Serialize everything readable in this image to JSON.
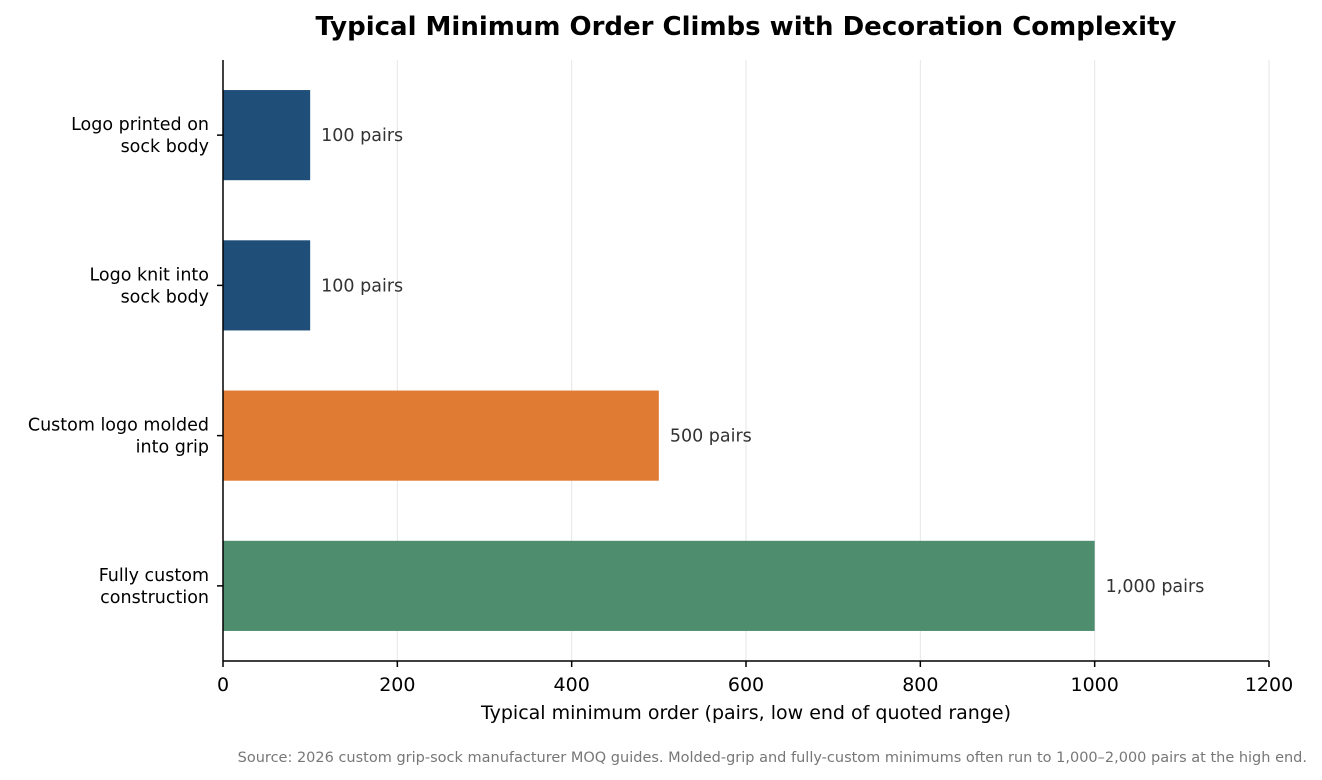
{
  "chart_data": {
    "type": "bar",
    "orientation": "horizontal",
    "title": "Typical Minimum Order Climbs with Decoration Complexity",
    "xlabel": "Typical minimum order (pairs, low end of quoted range)",
    "ylabel": "",
    "xlim": [
      0,
      1200
    ],
    "xticks": [
      0,
      200,
      400,
      600,
      800,
      1000,
      1200
    ],
    "grid": "vertical",
    "categories": [
      [
        "Logo printed on",
        "sock body"
      ],
      [
        "Logo knit into",
        "sock body"
      ],
      [
        "Custom logo molded",
        "into grip"
      ],
      [
        "Fully custom",
        "construction"
      ]
    ],
    "values": [
      100,
      100,
      500,
      1000
    ],
    "data_labels": [
      "100 pairs",
      "100 pairs",
      "500 pairs",
      "1,000 pairs"
    ],
    "colors": [
      "#1f4e79",
      "#1f4e79",
      "#e07b33",
      "#4e8d6e"
    ],
    "source": "Source: 2026 custom grip-sock manufacturer MOQ guides. Molded-grip and fully-custom minimums often run to 1,000–2,000 pairs at the high end."
  }
}
